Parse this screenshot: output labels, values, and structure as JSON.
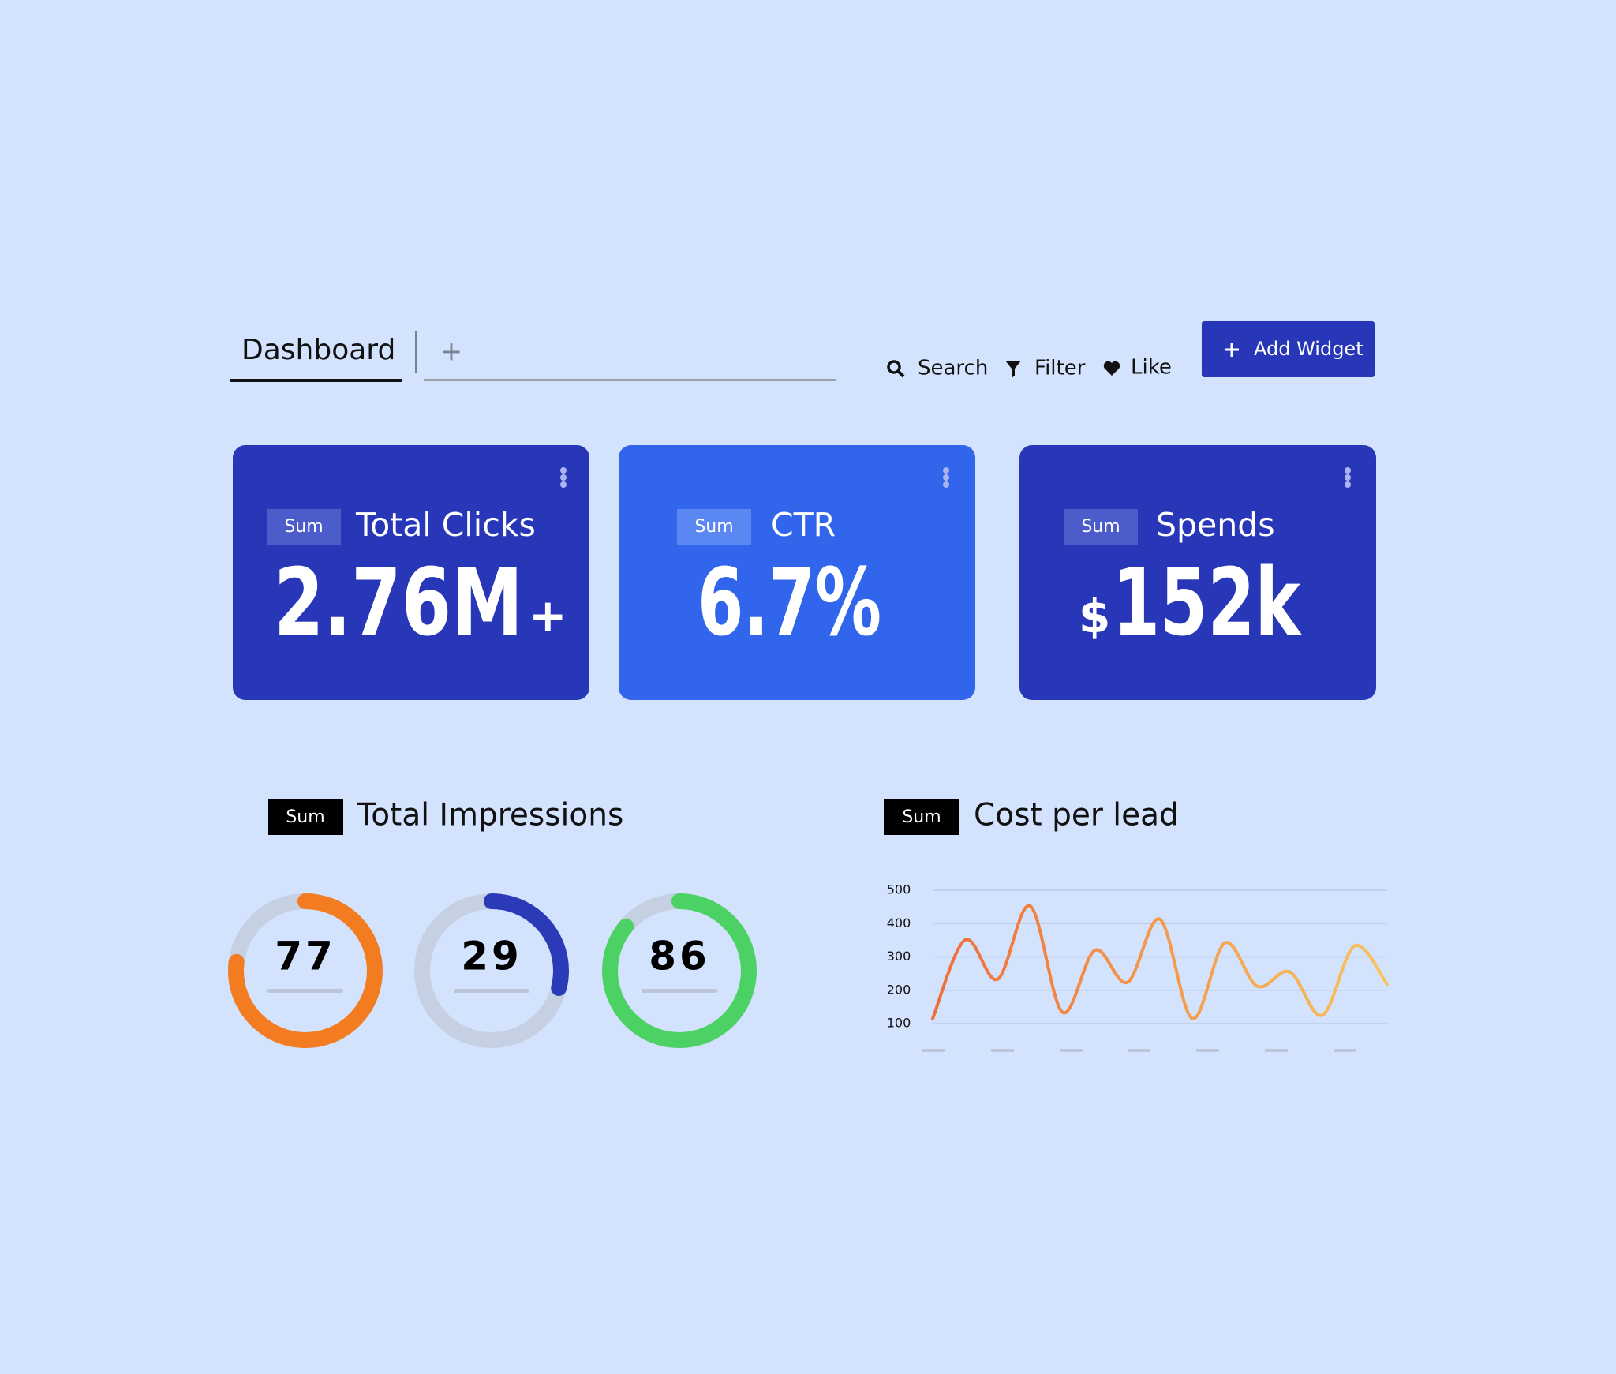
{
  "toolbar": {
    "tab": "Dashboard",
    "new_tab": "+",
    "search": "Search",
    "filter": "Filter",
    "like": "Like",
    "button": "Add Widget"
  },
  "cards": [
    {
      "badge": "Sum",
      "title": "Total Clicks",
      "value": "2.76M",
      "suffix": "+"
    },
    {
      "badge": "Sum",
      "title": "CTR",
      "value": "6.7%"
    },
    {
      "badge": "Sum",
      "title": "Spends",
      "prefix": "$",
      "value": "152k"
    }
  ],
  "impressions": {
    "badge": "Sum",
    "title": "Total Impressions",
    "max": 100,
    "values": [
      77,
      29,
      86
    ],
    "colors": [
      "#f47c20",
      "#2b3bb8",
      "#4cd264"
    ]
  },
  "chart_data": {
    "type": "line",
    "badge": "Sum",
    "title": "Cost per lead",
    "values": [
      115,
      351,
      233,
      453,
      134,
      320,
      224,
      413,
      115,
      342,
      212,
      255,
      125,
      333,
      218
    ],
    "colors": [
      "#ef6e3a",
      "#f9c45b"
    ],
    "ylim": [
      100,
      500
    ],
    "yticks": [
      500,
      400,
      300,
      200,
      100
    ],
    "grid": true
  }
}
